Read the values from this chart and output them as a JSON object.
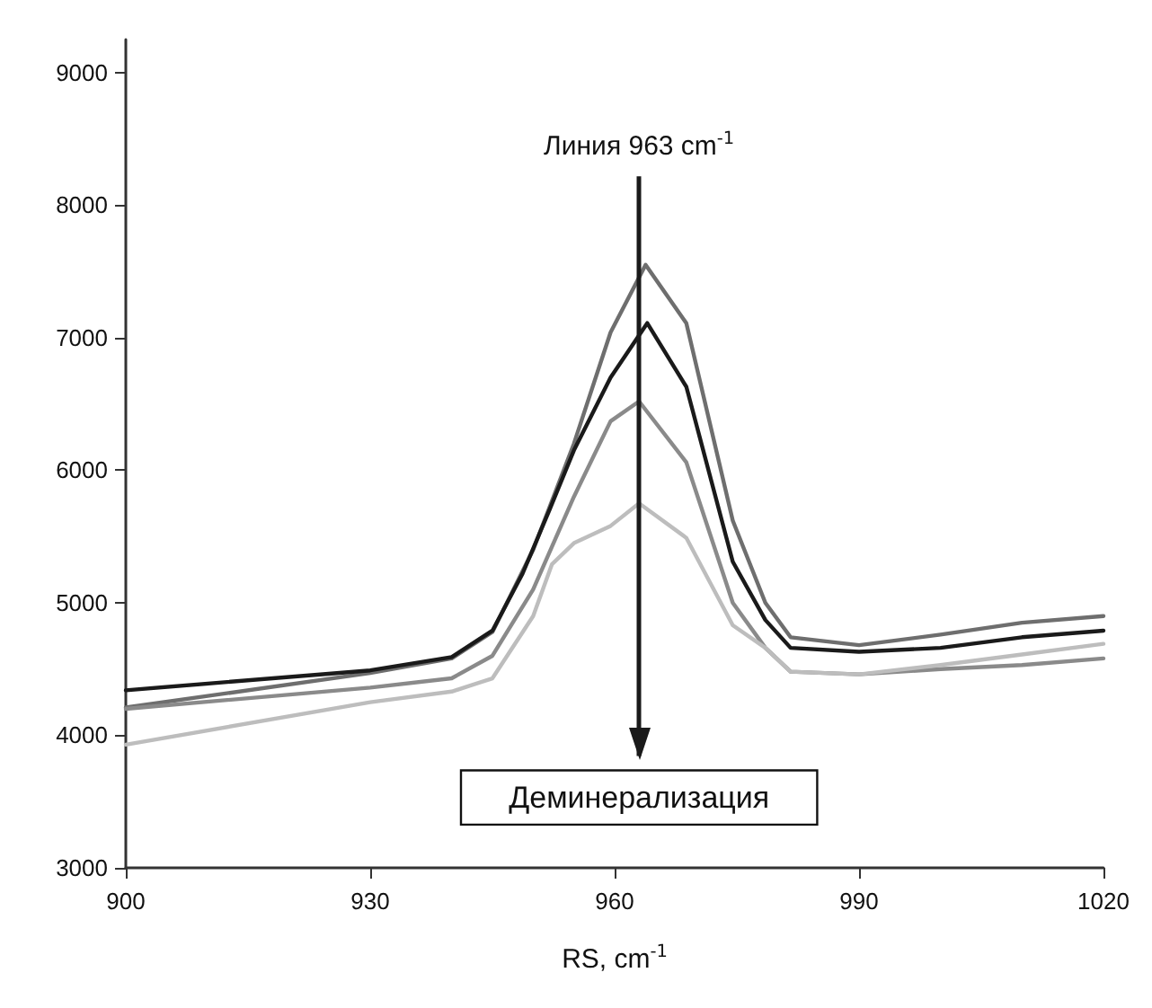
{
  "chart_data": {
    "type": "line",
    "xlabel": "RS, cm$^{-1}$",
    "xlim": [
      900,
      1020
    ],
    "xticks": [
      900,
      930,
      960,
      990,
      1020
    ],
    "ylim": [
      3000,
      9250
    ],
    "yticks": [
      3000,
      4000,
      5000,
      6000,
      7000,
      8000,
      9000
    ],
    "grid": false,
    "marker": "none",
    "line_style": "solid",
    "series": [
      {
        "color": "#6e6e6e",
        "x": [
          900,
          930,
          940,
          945,
          950,
          955,
          959.5,
          963.8,
          968.8,
          974.5,
          978.5,
          981.6,
          990,
          1000,
          1010,
          1020
        ],
        "values": [
          4210,
          4470,
          4580,
          4780,
          5400,
          6200,
          7040,
          7550,
          7110,
          5620,
          5000,
          4740,
          4680,
          4760,
          4850,
          4900
        ]
      },
      {
        "color": "#1a1a1a",
        "x": [
          900,
          930,
          940,
          945,
          948.7,
          952,
          955,
          959.5,
          964,
          968.8,
          974.5,
          978.5,
          981.6,
          990,
          1000,
          1010,
          1020
        ],
        "values": [
          4340,
          4490,
          4590,
          4790,
          5220,
          5700,
          6150,
          6700,
          7110,
          6630,
          5310,
          4870,
          4660,
          4630,
          4660,
          4740,
          4790
        ]
      },
      {
        "color": "#8a8a8a",
        "x": [
          900,
          930,
          940,
          945,
          950,
          955,
          959.5,
          963,
          968.8,
          974.5,
          978.5,
          981.6,
          990,
          1000,
          1010,
          1020
        ],
        "values": [
          4200,
          4360,
          4430,
          4600,
          5100,
          5800,
          6370,
          6520,
          6060,
          5000,
          4660,
          4480,
          4460,
          4500,
          4530,
          4580
        ]
      },
      {
        "color": "#bdbdbd",
        "x": [
          900,
          930,
          940,
          945,
          950,
          952.3,
          955,
          959.5,
          963,
          968.8,
          974.5,
          978.5,
          981.6,
          990,
          1000,
          1010,
          1020
        ],
        "values": [
          3930,
          4250,
          4330,
          4430,
          4900,
          5290,
          5450,
          5580,
          5750,
          5490,
          4830,
          4660,
          4480,
          4460,
          4530,
          4610,
          4690
        ]
      }
    ],
    "ref_lines": [
      {
        "axis": "x",
        "value": 963,
        "label": "Линия 963 cm$^{-1}$",
        "color": "#1a1a1a"
      }
    ],
    "annotations": [
      "Деминерализация"
    ]
  }
}
